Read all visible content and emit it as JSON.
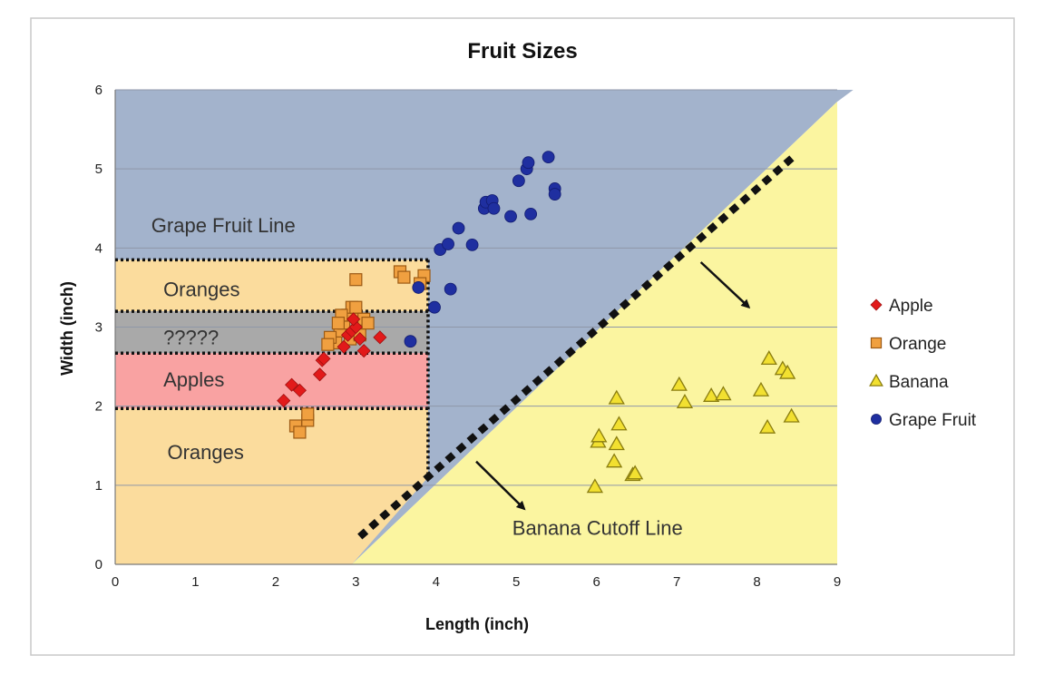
{
  "chart_data": {
    "type": "scatter",
    "title": "Fruit Sizes",
    "xlabel": "Length (inch)",
    "ylabel": "Width (inch)",
    "xlim": [
      0,
      9
    ],
    "ylim": [
      0,
      6
    ],
    "xticks": [
      0,
      1,
      2,
      3,
      4,
      5,
      6,
      7,
      8,
      9
    ],
    "yticks": [
      0,
      1,
      2,
      3,
      4,
      5,
      6
    ],
    "grid": "horizontal",
    "legend_position": "right",
    "series": [
      {
        "name": "Apple",
        "marker": "diamond",
        "color": "#e21a1a",
        "points": [
          [
            2.1,
            2.07
          ],
          [
            2.2,
            2.27
          ],
          [
            2.3,
            2.2
          ],
          [
            2.55,
            2.4
          ],
          [
            2.58,
            2.58
          ],
          [
            2.6,
            2.6
          ],
          [
            2.85,
            2.75
          ],
          [
            2.9,
            2.9
          ],
          [
            2.95,
            2.95
          ],
          [
            3.0,
            3.0
          ],
          [
            3.05,
            2.85
          ],
          [
            3.1,
            2.7
          ],
          [
            2.97,
            3.1
          ],
          [
            3.3,
            2.87
          ]
        ]
      },
      {
        "name": "Orange",
        "marker": "square",
        "color": "#f0a040",
        "points": [
          [
            2.25,
            1.75
          ],
          [
            2.3,
            1.67
          ],
          [
            2.4,
            1.82
          ],
          [
            2.4,
            1.9
          ],
          [
            3.0,
            3.6
          ],
          [
            3.55,
            3.7
          ],
          [
            3.6,
            3.63
          ],
          [
            3.85,
            3.65
          ],
          [
            3.8,
            3.55
          ],
          [
            2.75,
            2.8
          ],
          [
            2.8,
            2.95
          ],
          [
            2.85,
            3.05
          ],
          [
            2.9,
            3.15
          ],
          [
            2.95,
            3.25
          ],
          [
            3.0,
            3.25
          ],
          [
            2.82,
            3.15
          ],
          [
            2.78,
            3.05
          ],
          [
            2.68,
            2.87
          ],
          [
            2.65,
            2.78
          ],
          [
            3.05,
            3.1
          ],
          [
            3.1,
            3.1
          ],
          [
            3.15,
            3.05
          ],
          [
            2.93,
            2.85
          ],
          [
            3.05,
            2.9
          ]
        ]
      },
      {
        "name": "Banana",
        "marker": "triangle",
        "color": "#f2e030",
        "points": [
          [
            5.98,
            0.98
          ],
          [
            6.02,
            1.55
          ],
          [
            6.03,
            1.62
          ],
          [
            6.22,
            1.3
          ],
          [
            6.25,
            1.52
          ],
          [
            6.25,
            2.1
          ],
          [
            6.28,
            1.77
          ],
          [
            6.45,
            1.13
          ],
          [
            6.48,
            1.15
          ],
          [
            7.03,
            2.27
          ],
          [
            7.1,
            2.05
          ],
          [
            7.43,
            2.13
          ],
          [
            7.58,
            2.15
          ],
          [
            8.05,
            2.2
          ],
          [
            8.15,
            2.6
          ],
          [
            8.13,
            1.73
          ],
          [
            8.32,
            2.47
          ],
          [
            8.38,
            2.42
          ],
          [
            8.43,
            1.87
          ]
        ]
      },
      {
        "name": "Grape Fruit",
        "marker": "circle",
        "color": "#1f2fa0",
        "points": [
          [
            3.68,
            2.82
          ],
          [
            3.78,
            3.5
          ],
          [
            3.98,
            3.25
          ],
          [
            4.05,
            3.98
          ],
          [
            4.15,
            4.05
          ],
          [
            4.18,
            3.48
          ],
          [
            4.28,
            4.25
          ],
          [
            4.45,
            4.04
          ],
          [
            4.6,
            4.5
          ],
          [
            4.62,
            4.58
          ],
          [
            4.7,
            4.6
          ],
          [
            4.72,
            4.5
          ],
          [
            4.93,
            4.4
          ],
          [
            5.03,
            4.85
          ],
          [
            5.13,
            5.0
          ],
          [
            5.15,
            5.08
          ],
          [
            5.18,
            4.43
          ],
          [
            5.4,
            5.15
          ],
          [
            5.48,
            4.75
          ],
          [
            5.48,
            4.68
          ]
        ]
      }
    ],
    "regions": [
      {
        "label": "Grape Fruit Line"
      },
      {
        "label": "Oranges",
        "y_range": [
          3.2,
          3.85
        ]
      },
      {
        "label": "?????",
        "y_range": [
          2.67,
          3.2
        ]
      },
      {
        "label": "Apples",
        "y_range": [
          1.97,
          2.67
        ]
      },
      {
        "label": "Oranges",
        "y_range": [
          0,
          1.97
        ]
      },
      {
        "label": "Banana Cutoff Line"
      }
    ],
    "colors": {
      "grape_region": "#a3b3cc",
      "banana_region": "#fbf5a0",
      "orange_region": "#fbdc9d",
      "unknown_region": "#a9a9a9",
      "apple_region": "#f9a2a2"
    }
  }
}
